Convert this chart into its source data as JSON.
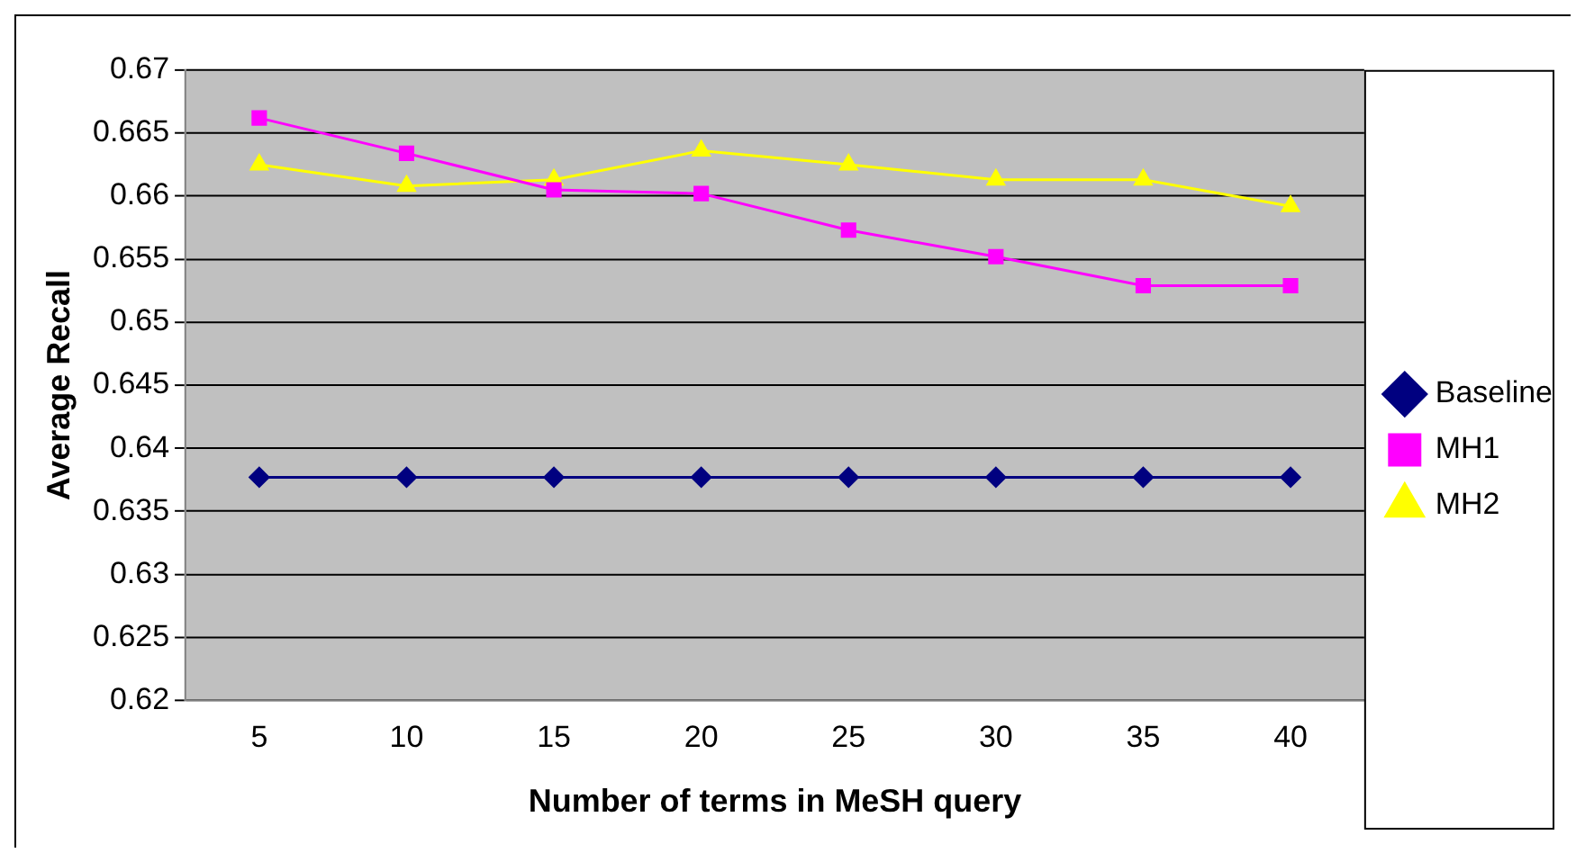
{
  "chart_data": {
    "type": "line",
    "xlabel": "Number of terms in MeSH query",
    "ylabel": "Average Recall",
    "categories": [
      "5",
      "10",
      "15",
      "20",
      "25",
      "30",
      "35",
      "40"
    ],
    "series": [
      {
        "name": "Baseline",
        "color": "#000080",
        "marker": "diamond",
        "values": [
          0.6377,
          0.6377,
          0.6377,
          0.6377,
          0.6377,
          0.6377,
          0.6377,
          0.6377
        ]
      },
      {
        "name": "MH1",
        "color": "#ff00ff",
        "marker": "square",
        "values": [
          0.6662,
          0.6634,
          0.6605,
          0.6602,
          0.6573,
          0.6552,
          0.6529,
          0.6529
        ]
      },
      {
        "name": "MH2",
        "color": "#ffff00",
        "marker": "triangle",
        "values": [
          0.6625,
          0.6608,
          0.6613,
          0.6636,
          0.6625,
          0.6613,
          0.6613,
          0.6592
        ]
      }
    ],
    "ylim": [
      0.62,
      0.67
    ],
    "yticks": [
      0.62,
      0.625,
      0.63,
      0.635,
      0.64,
      0.645,
      0.65,
      0.655,
      0.66,
      0.665,
      0.67
    ],
    "grid": "y",
    "legend": "right"
  }
}
